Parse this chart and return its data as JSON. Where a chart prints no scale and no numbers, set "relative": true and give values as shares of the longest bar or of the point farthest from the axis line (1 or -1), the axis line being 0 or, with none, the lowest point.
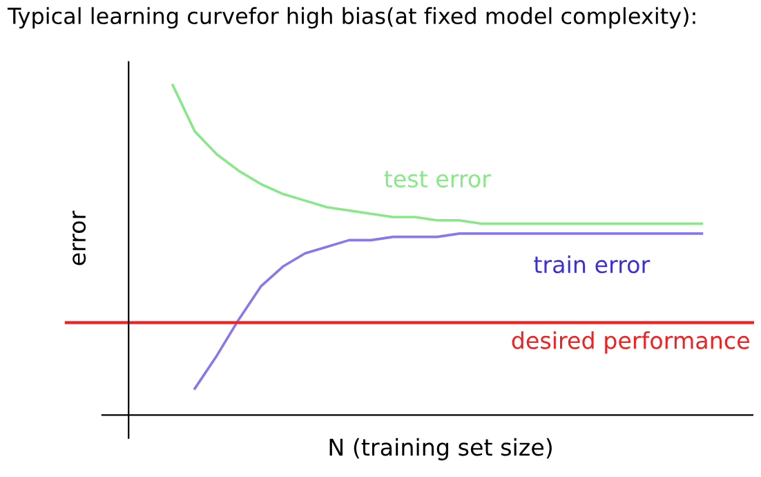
{
  "chart_data": {
    "type": "line",
    "relative": true,
    "title": "Typical learning curvefor high bias(at fixed model complexity):",
    "xlabel": "N (training set size)",
    "ylabel": "error",
    "categories": [
      null,
      null,
      null,
      null,
      null,
      null,
      null,
      null,
      null,
      null,
      null,
      null,
      null,
      null,
      null,
      null,
      null,
      null,
      null,
      null,
      null,
      null,
      null,
      null,
      null
    ],
    "series": [
      {
        "name": "test error",
        "color": "#88e888",
        "values": [
          1.0,
          0.86,
          0.79,
          0.74,
          0.7,
          0.67,
          0.65,
          0.63,
          0.62,
          0.61,
          0.6,
          0.6,
          0.59,
          0.59,
          0.58,
          0.58,
          0.58,
          0.58,
          0.58,
          0.58,
          0.58,
          0.58,
          0.58,
          0.58,
          0.58
        ]
      },
      {
        "name": "train error",
        "color": "#8878f0",
        "values": [
          null,
          0.08,
          0.18,
          0.29,
          0.39,
          0.45,
          0.49,
          0.51,
          0.53,
          0.53,
          0.54,
          0.54,
          0.54,
          0.55,
          0.55,
          0.55,
          0.55,
          0.55,
          0.55,
          0.55,
          0.55,
          0.55,
          0.55,
          0.55,
          0.55
        ]
      }
    ],
    "ref_lines": [
      {
        "axis": "y",
        "value": 0.28,
        "label": "desired performance",
        "color": "#ee2222"
      }
    ],
    "legend": false,
    "tick_labels": false,
    "marker": "none",
    "line_style": "solid"
  }
}
